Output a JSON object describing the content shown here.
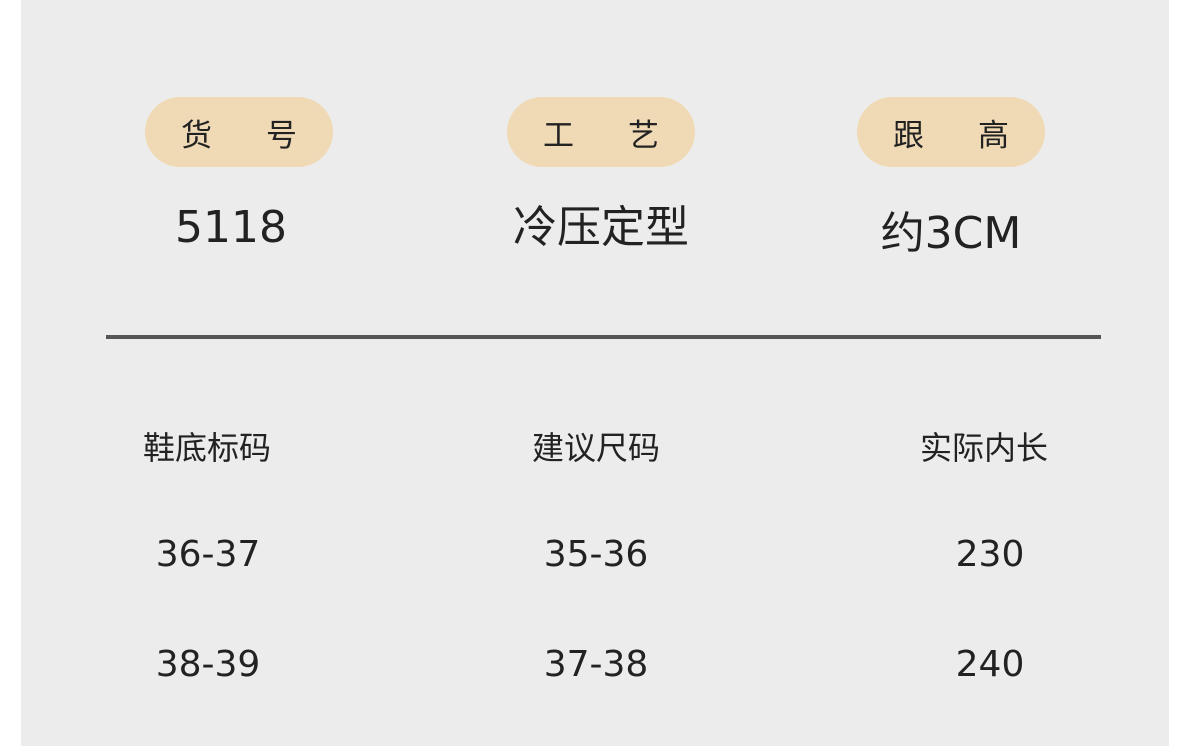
{
  "specs": [
    {
      "label_chars": [
        "货",
        "号"
      ],
      "value": "5118"
    },
    {
      "label_chars": [
        "工",
        "艺"
      ],
      "value": "冷压定型"
    },
    {
      "label_chars": [
        "跟",
        "高"
      ],
      "value": "约3CM"
    }
  ],
  "size_table": {
    "headers": [
      "鞋底标码",
      "建议尺码",
      "实际内长"
    ],
    "rows": [
      [
        "36-37",
        "35-36",
        "230"
      ],
      [
        "38-39",
        "37-38",
        "240"
      ]
    ]
  },
  "colors": {
    "background": "#ececec",
    "pill": "#f0dab6",
    "divider": "#555555",
    "text": "#222222"
  }
}
